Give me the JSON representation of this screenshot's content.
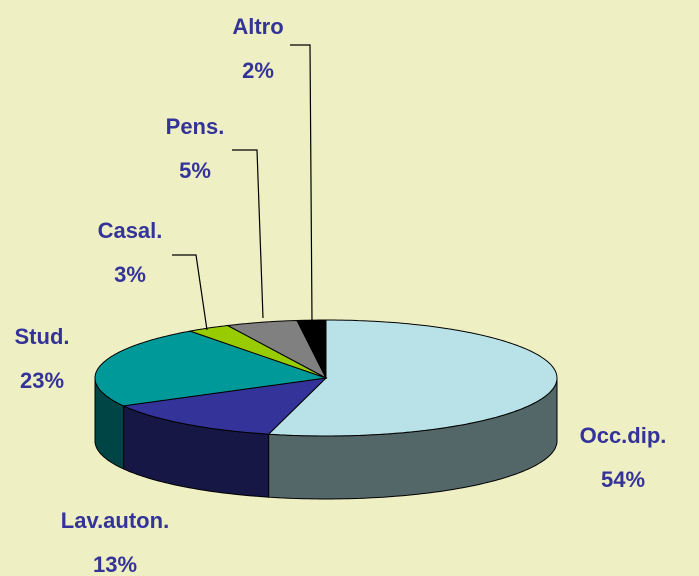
{
  "chart_data": {
    "type": "pie3d",
    "categories": [
      "Occ.dip.",
      "Lav.auton.",
      "Stud.",
      "Casal.",
      "Pens.",
      "Altro"
    ],
    "values": [
      54,
      13,
      23,
      3,
      5,
      2
    ],
    "value_labels": [
      "54%",
      "13%",
      "23%",
      "3%",
      "5%",
      "2%"
    ],
    "colors": [
      "#b8e2e8",
      "#333399",
      "#009999",
      "#99cc00",
      "#808080",
      "#000000"
    ]
  }
}
